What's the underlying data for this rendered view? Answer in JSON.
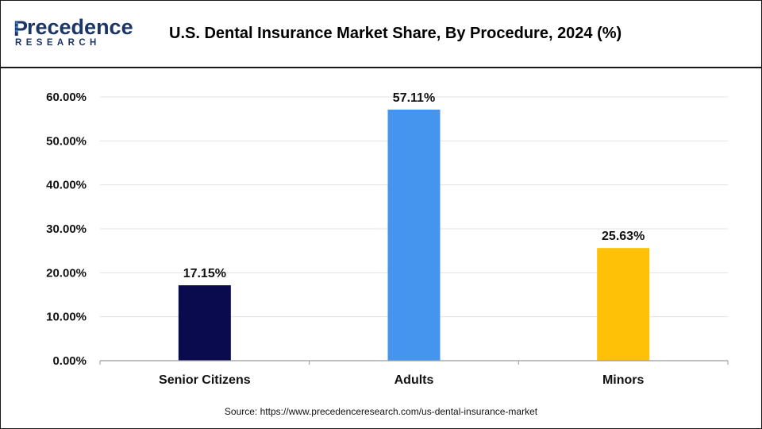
{
  "header": {
    "logo_main": "recedence",
    "logo_initial": "P",
    "logo_sub": "RESEARCH",
    "title": "U.S. Dental Insurance Market Share, By Procedure, 2024 (%)"
  },
  "footer": {
    "source": "Source: https://www.precedenceresearch.com/us-dental-insurance-market"
  },
  "colors": {
    "brand": "#1b3566",
    "brand_accent": "#2f7fd6"
  },
  "chart_data": {
    "type": "bar",
    "title": "U.S. Dental Insurance Market Share, By Procedure, 2024 (%)",
    "xlabel": "",
    "ylabel": "",
    "categories": [
      "Senior Citizens",
      "Adults",
      "Minors"
    ],
    "values": [
      17.15,
      57.11,
      25.63
    ],
    "value_labels": [
      "17.15%",
      "57.11%",
      "25.63%"
    ],
    "bar_colors": [
      "#0a0a4f",
      "#4595ee",
      "#fec107"
    ],
    "ylim": [
      0,
      60
    ],
    "yticks": [
      "0.00%",
      "10.00%",
      "20.00%",
      "30.00%",
      "40.00%",
      "50.00%",
      "60.00%"
    ],
    "ytick_values": [
      0,
      10,
      20,
      30,
      40,
      50,
      60
    ],
    "grid": true,
    "legend": "none"
  }
}
